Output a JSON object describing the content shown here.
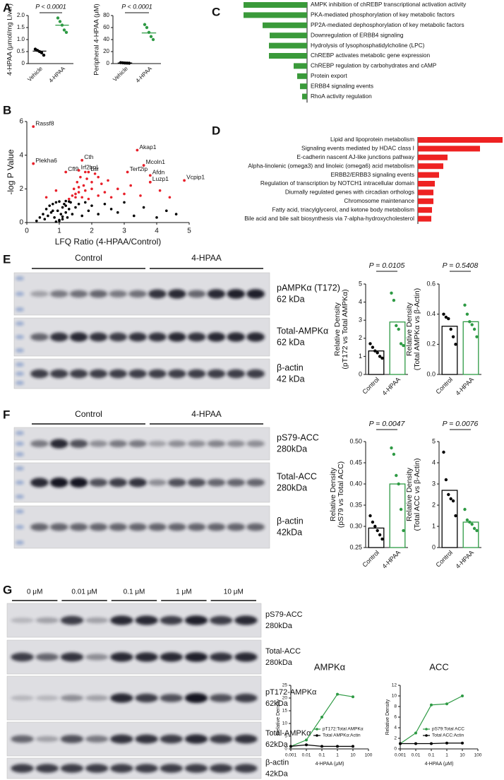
{
  "panels": [
    "A",
    "B",
    "C",
    "D",
    "E",
    "F",
    "G"
  ],
  "blots": [
    {
      "groups": [
        "Control",
        "4-HPAA"
      ],
      "rows": [
        {
          "protein": "pAMPKα (T172)",
          "size": "62 kDa"
        },
        {
          "protein": "Total-AMPKα",
          "size": "62 kDa"
        },
        {
          "protein": "β-actin",
          "size": "42 kDa"
        }
      ]
    },
    {
      "groups": [
        "Control",
        "4-HPAA"
      ],
      "rows": [
        {
          "protein": "pS79-ACC",
          "size": "280kDa"
        },
        {
          "protein": "Total-ACC",
          "size": "280kDa"
        },
        {
          "protein": "β-actin",
          "size": "42kDa"
        }
      ]
    },
    {
      "groups": [
        "0 μM",
        "0.01 μM",
        "0.1 μM",
        "1 μM",
        "10 μM"
      ],
      "rows": [
        {
          "protein": "pS79-ACC",
          "size": "280kDa"
        },
        {
          "protein": "Total-ACC",
          "size": "280kDa"
        },
        {
          "protein": "pT172-AMPKα",
          "size": "62kDa"
        },
        {
          "protein": "Total-AMPKα",
          "size": "62kDa"
        },
        {
          "protein": "β-actin",
          "size": "42kDa"
        }
      ]
    }
  ],
  "chart_data": [
    {
      "type": "dot",
      "ylabel": "4-HPAA (μmol/mg Liver)",
      "categories": [
        "Vehicle",
        "4-HPAA"
      ],
      "colors": [
        "#000000",
        "#2e9a44"
      ],
      "values": [
        0.52,
        1.6
      ],
      "points": [
        [
          0.6,
          0.55,
          0.5,
          0.45,
          0.35
        ],
        [
          1.9,
          1.75,
          1.6,
          1.4,
          1.3
        ]
      ],
      "ylim": [
        0,
        2
      ],
      "yticks": [
        0,
        0.5,
        {
          "value": 1,
          "label": "1.0"
        },
        1.5,
        {
          "value": 2,
          "label": "2.0"
        }
      ],
      "annotation": "P < 0.0001"
    },
    {
      "type": "dot",
      "ylabel": "Peripheral 4-HPAA (μM)",
      "categories": [
        "Vehicle",
        "4-HPAA"
      ],
      "colors": [
        "#000000",
        "#2e9a44"
      ],
      "values": [
        1,
        51
      ],
      "points": [
        [
          1.5,
          1.2,
          1,
          0.8,
          0.6
        ],
        [
          65,
          60,
          52,
          45,
          40
        ]
      ],
      "ylim": [
        0,
        80
      ],
      "yticks": [
        0,
        20,
        40,
        60,
        80
      ],
      "annotation": "P < 0.0001"
    },
    {
      "type": "scatter",
      "xlabel": "LFQ Ratio (4-HPAA/Control)",
      "ylabel": "-log P Value",
      "xlim": [
        0,
        5
      ],
      "xticks": [
        0,
        1,
        2,
        3,
        4,
        5
      ],
      "ylim": [
        0,
        6
      ],
      "yticks": [
        0,
        2,
        4,
        6
      ],
      "series": [
        {
          "color": "#000000",
          "x": [
            0.3,
            0.4,
            0.5,
            0.55,
            0.6,
            0.65,
            0.7,
            0.75,
            0.8,
            0.85,
            0.9,
            0.95,
            1.0,
            1.0,
            1.05,
            1.1,
            1.1,
            1.15,
            1.2,
            1.2,
            1.25,
            1.3,
            1.35,
            1.4,
            1.5,
            1.6,
            1.7,
            1.8,
            1.9,
            2.0,
            2.2,
            2.4,
            2.6,
            2.8,
            3.0,
            3.3,
            3.6,
            4.0,
            4.3,
            4.6,
            0.9,
            1.0,
            1.1,
            0.8,
            1.2,
            1.3
          ],
          "y": [
            0.1,
            0.3,
            0.5,
            0.2,
            0.8,
            0.4,
            1.0,
            0.6,
            1.1,
            0.3,
            1.2,
            0.7,
            0.1,
            1.25,
            0.5,
            0.9,
            0.2,
            1.1,
            0.6,
            1.28,
            0.3,
            0.8,
            1.2,
            0.5,
            0.9,
            1.1,
            0.4,
            1.2,
            0.7,
            1.0,
            0.5,
            1.1,
            0.8,
            0.6,
            1.2,
            0.4,
            0.9,
            0.3,
            0.7,
            0.5,
            0.05,
            0.15,
            0.35,
            0.7,
            1.0,
            1.25
          ]
        },
        {
          "color": "#e8202a",
          "x": [
            1.3,
            1.4,
            1.45,
            1.5,
            1.55,
            1.6,
            1.65,
            1.7,
            1.75,
            1.8,
            1.85,
            1.9,
            2.0,
            2.1,
            2.2,
            2.3,
            2.4,
            2.5,
            2.6,
            2.8,
            3.0,
            3.2,
            3.5,
            3.8,
            4.1,
            4.4,
            1.5,
            1.6,
            1.8,
            2.0,
            2.2,
            0.6,
            0.9
          ],
          "y": [
            1.4,
            1.6,
            2.0,
            1.5,
            2.4,
            1.8,
            2.7,
            1.5,
            2.2,
            1.9,
            2.6,
            1.4,
            2.0,
            2.9,
            1.6,
            2.3,
            1.8,
            2.5,
            1.5,
            2.0,
            1.7,
            2.2,
            1.6,
            2.4,
            1.9,
            1.5,
            1.7,
            2.1,
            3.0,
            2.4,
            2.7,
            1.5,
            1.9
          ]
        }
      ],
      "labels": [
        {
          "text": "Rassf8",
          "x": 0.2,
          "y": 5.7
        },
        {
          "text": "Plekha6",
          "x": 0.2,
          "y": 3.5
        },
        {
          "text": "Cth",
          "x": 1.7,
          "y": 3.7
        },
        {
          "text": "Cfl9",
          "x": 1.2,
          "y": 3.0
        },
        {
          "text": "Irf2bpl",
          "x": 1.6,
          "y": 3.1
        },
        {
          "text": "Lsr",
          "x": 1.9,
          "y": 3.0
        },
        {
          "text": "Akap1",
          "x": 3.4,
          "y": 4.3
        },
        {
          "text": "Mcoln1",
          "x": 3.6,
          "y": 3.4
        },
        {
          "text": "Terf2ip",
          "x": 3.1,
          "y": 3.0
        },
        {
          "text": "Afdn",
          "x": 3.8,
          "y": 2.8
        },
        {
          "text": "Luzp1",
          "x": 3.8,
          "y": 2.4
        },
        {
          "text": "Vcpip1",
          "x": 4.85,
          "y": 2.5
        }
      ]
    },
    {
      "type": "hbar",
      "bar_direction": "left",
      "color": "#3a9a3a",
      "xlim": [
        0,
        10
      ],
      "categories": [
        "AMPK inhibition of chREBP transcriptional activation activity",
        "PKA-mediated phosphorylation of key metabolic factors",
        "PP2A-mediated dephosphorylation of key metabolic factors",
        "Downregulation of ERBB4 signaling",
        "Hydrolysis of lysophosphatidylcholine (LPC)",
        "ChREBP activates metabolic gene expression",
        "ChREBP regulation by carbohydrates and cAMP",
        "Protein export",
        "ERBB4 signaling events",
        "RhoA activity regulation"
      ],
      "values": [
        9.0,
        9.0,
        6.3,
        5.3,
        5.4,
        5.4,
        1.9,
        1.4,
        1.0,
        0.7
      ]
    },
    {
      "type": "hbar",
      "bar_direction": "right",
      "color": "#ee2222",
      "xlim": [
        0,
        12
      ],
      "categories": [
        "Lipid and lipoprotein metabolism",
        "Signaling events mediated by HDAC class I",
        "E-cadherin nascent AJ-like junctions pathway",
        "Alpha-linolenic (omega3) and linoleic (omega6) acid metabolism",
        "ERBB2/ERBB3 signaling events",
        "Regulation of transcription by NOTCH1 intracellular domain",
        "Diurnally regulated genes with circadian orthologs",
        "Chromosome maintenance",
        "Fatty acid, triacylglycerol, and ketone body metabolism",
        "Bile acid and bile salt biosynthesis via 7-alpha-hydroxycholesterol"
      ],
      "values": [
        12,
        8.8,
        4.2,
        3.6,
        3.0,
        2.4,
        2.2,
        2.2,
        2.0,
        1.9
      ]
    },
    {
      "type": "bar",
      "ylabel": [
        "Relative Density",
        "(pT172 vs Total AMPKα)"
      ],
      "categories": [
        "Control",
        "4-HPAA"
      ],
      "colors": [
        "#000000",
        "#2e9a44"
      ],
      "values": [
        1.3,
        2.9
      ],
      "points": [
        [
          1.7,
          1.5,
          1.3,
          1.2,
          1.0,
          0.9
        ],
        [
          4.5,
          4.1,
          2.7,
          2.5,
          1.7,
          1.6
        ]
      ],
      "ylim": [
        0,
        5
      ],
      "yticks": [
        0,
        1,
        2,
        3,
        4,
        5
      ],
      "annotation": "P = 0.0105"
    },
    {
      "type": "bar",
      "ylabel": [
        "Relative Density",
        "(Total AMPKα vs β-Actin)"
      ],
      "categories": [
        "Control",
        "4-HPAA"
      ],
      "colors": [
        "#000000",
        "#2e9a44"
      ],
      "values": [
        0.32,
        0.35
      ],
      "points": [
        [
          0.4,
          0.38,
          0.37,
          0.3,
          0.25,
          0.2
        ],
        [
          0.46,
          0.4,
          0.35,
          0.33,
          0.3,
          0.25
        ]
      ],
      "ylim": [
        0,
        0.6
      ],
      "yticks": [
        {
          "value": 0,
          "label": "0.0"
        },
        0.2,
        0.4,
        0.6
      ],
      "annotation": "P = 0.5408"
    },
    {
      "type": "bar",
      "ylabel": [
        "Relative Density",
        "(pS79 vs Total ACC)"
      ],
      "categories": [
        "Control",
        "4-HPAA"
      ],
      "colors": [
        "#000000",
        "#2e9a44"
      ],
      "values": [
        0.296,
        0.4
      ],
      "points": [
        [
          0.325,
          0.31,
          0.3,
          0.29,
          0.28,
          0.27
        ],
        [
          0.485,
          0.47,
          0.42,
          0.4,
          0.34,
          0.29
        ]
      ],
      "ylim": [
        0.25,
        0.5
      ],
      "yticks": [
        0.25,
        {
          "value": 0.3,
          "label": "0.30"
        },
        0.35,
        {
          "value": 0.4,
          "label": "0.40"
        },
        0.45,
        {
          "value": 0.5,
          "label": "0.50"
        }
      ],
      "annotation": "P = 0.0047"
    },
    {
      "type": "bar",
      "ylabel": [
        "Relative Density",
        "(Total ACC vs β-Actin)"
      ],
      "categories": [
        "Control",
        "4-HPAA"
      ],
      "colors": [
        "#000000",
        "#2e9a44"
      ],
      "values": [
        2.7,
        1.2
      ],
      "points": [
        [
          4.5,
          3.2,
          2.5,
          2.3,
          2.2,
          1.5
        ],
        [
          1.8,
          1.3,
          1.2,
          1.1,
          0.9,
          0.8
        ]
      ],
      "ylim": [
        0,
        5
      ],
      "yticks": [
        0,
        1,
        2,
        3,
        4,
        5
      ],
      "annotation": "P = 0.0076"
    },
    {
      "type": "line",
      "title": "AMPKα",
      "xlabel": "4-HPAA (μM)",
      "ylabel": "Relative Density",
      "xlog": true,
      "x": [
        0.001,
        0.01,
        0.1,
        1,
        10
      ],
      "xlim": [
        0.001,
        100
      ],
      "xticks": [
        0.001,
        0.01,
        0.1,
        1,
        10,
        100
      ],
      "ylim": [
        0,
        25
      ],
      "yticks": [
        0,
        5,
        10,
        15,
        20,
        25
      ],
      "legend": "lower right",
      "series": [
        {
          "name": "pT172:Total AMPKα",
          "color": "#2e9a44",
          "values": [
            1,
            3.5,
            12.5,
            21.5,
            20.5
          ]
        },
        {
          "name": "Total AMPKα:Actin",
          "color": "#000000",
          "values": [
            1,
            1.6,
            1.0,
            1.0,
            1.0
          ]
        }
      ]
    },
    {
      "type": "line",
      "title": "ACC",
      "xlabel": "4-HPAA (μM)",
      "ylabel": "Relative Density",
      "xlog": true,
      "x": [
        0.001,
        0.01,
        0.1,
        1,
        10
      ],
      "xlim": [
        0.001,
        100
      ],
      "xticks": [
        0.001,
        0.01,
        0.1,
        1,
        10,
        100
      ],
      "ylim": [
        0,
        12
      ],
      "yticks": [
        0,
        2,
        4,
        6,
        8,
        10,
        12
      ],
      "legend": "lower right",
      "series": [
        {
          "name": "pS79:Total ACC",
          "color": "#2e9a44",
          "values": [
            1,
            3,
            8.3,
            8.5,
            10
          ]
        },
        {
          "name": "Total ACC:Actin",
          "color": "#000000",
          "values": [
            1,
            1,
            1,
            1.1,
            1.1
          ]
        }
      ]
    }
  ]
}
